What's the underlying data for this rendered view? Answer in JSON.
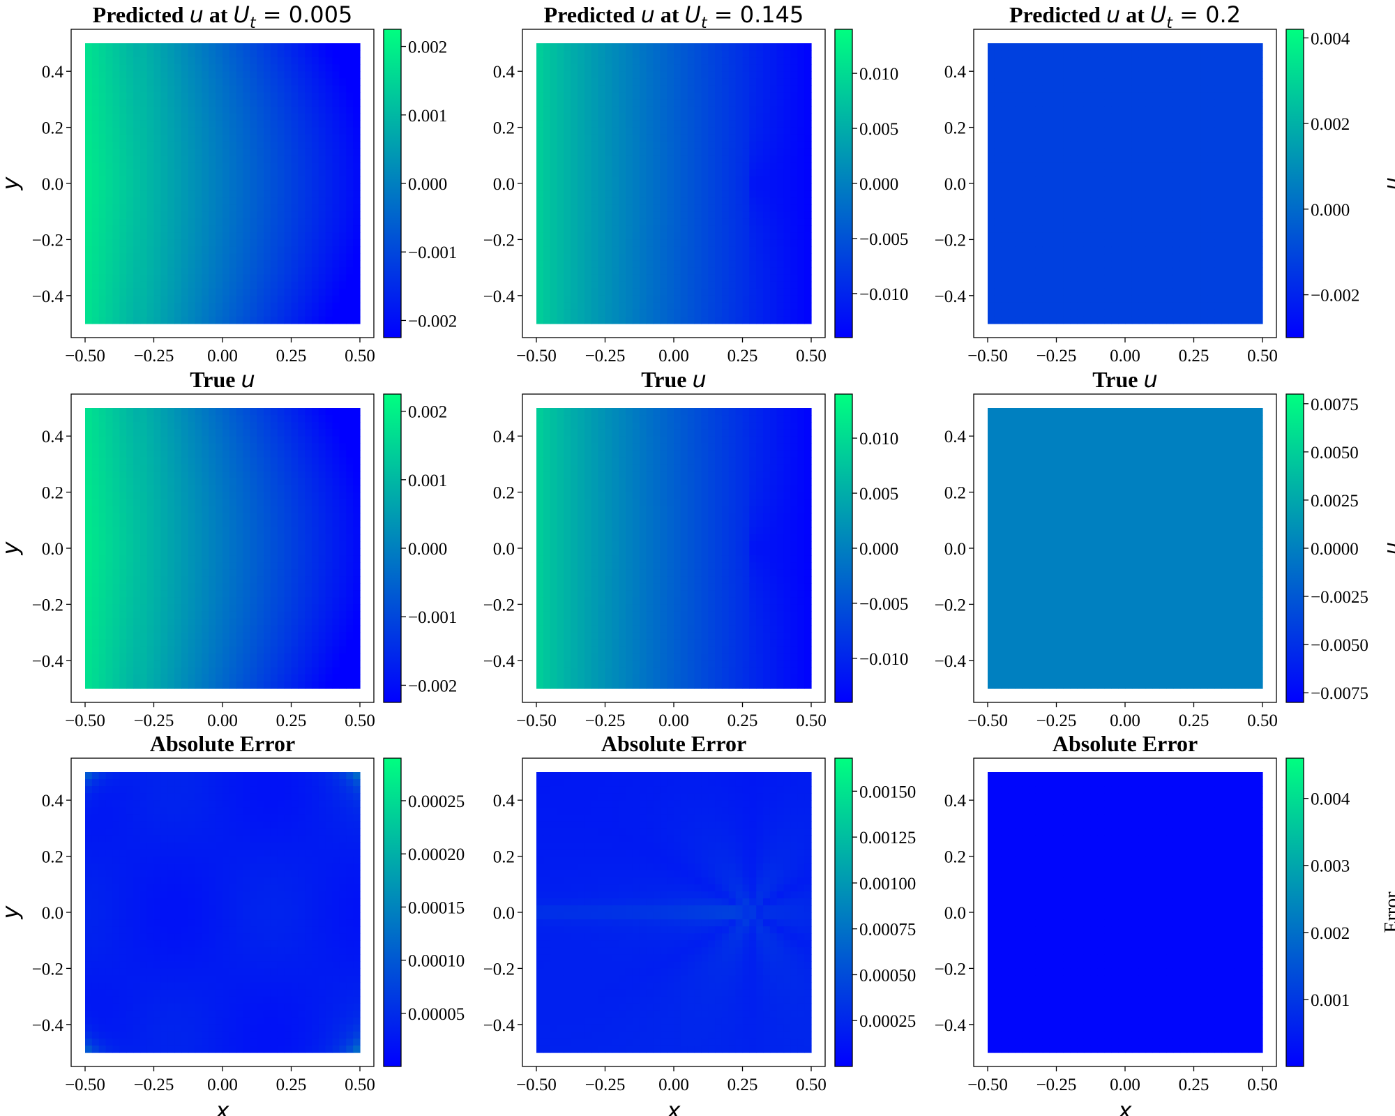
{
  "colors": {
    "low": "#0000ff",
    "high": "#00ff80"
  },
  "chart_data": [
    {
      "type": "heatmap",
      "row": 0,
      "col": 0,
      "title_parts": [
        "Predicted ",
        "u",
        " at ",
        "U",
        "t",
        " = 0.005"
      ],
      "xlim": [
        -0.5,
        0.5
      ],
      "ylim": [
        -0.5,
        0.5
      ],
      "xticks": [
        "−0.50",
        "−0.25",
        "0.00",
        "0.25",
        "0.50"
      ],
      "yticks": [
        "−0.4",
        "−0.2",
        "0.0",
        "0.2",
        "0.4"
      ],
      "ylabel": "y",
      "xlabel": "",
      "colorbar": {
        "range": [
          -0.00225,
          0.00225
        ],
        "ticks": [
          -0.002,
          -0.001,
          0.0,
          0.001,
          0.002
        ],
        "tick_labels": [
          "−0.002",
          "−0.001",
          "0.000",
          "0.001",
          "0.002"
        ],
        "label": ""
      },
      "pattern": "left-high",
      "field_approx": {
        "left_edge": 0.0019,
        "right_edge": -0.0021
      }
    },
    {
      "type": "heatmap",
      "row": 0,
      "col": 1,
      "title_parts": [
        "Predicted ",
        "u",
        " at ",
        "U",
        "t",
        " = 0.145"
      ],
      "xlim": [
        -0.5,
        0.5
      ],
      "ylim": [
        -0.5,
        0.5
      ],
      "xticks": [
        "−0.50",
        "−0.25",
        "0.00",
        "0.25",
        "0.50"
      ],
      "yticks": [
        "−0.4",
        "−0.2",
        "0.0",
        "0.2",
        "0.4"
      ],
      "ylabel": "",
      "xlabel": "",
      "colorbar": {
        "range": [
          -0.014,
          0.014
        ],
        "ticks": [
          -0.01,
          -0.005,
          0.0,
          0.005,
          0.01
        ],
        "tick_labels": [
          "−0.010",
          "−0.005",
          "0.000",
          "0.005",
          "0.010"
        ],
        "label": ""
      },
      "pattern": "left-high-crack",
      "field_approx": {
        "left_edge": 0.009,
        "right_edge": -0.013
      }
    },
    {
      "type": "heatmap",
      "row": 0,
      "col": 2,
      "title_parts": [
        "Predicted ",
        "u",
        " at ",
        "U",
        "t",
        " = 0.2"
      ],
      "xlim": [
        -0.5,
        0.5
      ],
      "ylim": [
        -0.5,
        0.5
      ],
      "xticks": [
        "−0.50",
        "−0.25",
        "0.00",
        "0.25",
        "0.50"
      ],
      "yticks": [
        "−0.4",
        "−0.2",
        "0.0",
        "0.2",
        "0.4"
      ],
      "ylabel": "",
      "xlabel": "",
      "colorbar": {
        "range": [
          -0.003,
          0.0042
        ],
        "ticks": [
          -0.002,
          0.0,
          0.002,
          0.004
        ],
        "tick_labels": [
          "−0.002",
          "0.000",
          "0.002",
          "0.004"
        ],
        "label": "u"
      },
      "pattern": "uniform",
      "field_approx": {
        "uniform": -0.0012
      }
    },
    {
      "type": "heatmap",
      "row": 1,
      "col": 0,
      "title_parts": [
        "True ",
        "u"
      ],
      "xlim": [
        -0.5,
        0.5
      ],
      "ylim": [
        -0.5,
        0.5
      ],
      "xticks": [
        "−0.50",
        "−0.25",
        "0.00",
        "0.25",
        "0.50"
      ],
      "yticks": [
        "−0.4",
        "−0.2",
        "0.0",
        "0.2",
        "0.4"
      ],
      "ylabel": "y",
      "xlabel": "",
      "colorbar": {
        "range": [
          -0.00225,
          0.00225
        ],
        "ticks": [
          -0.002,
          -0.001,
          0.0,
          0.001,
          0.002
        ],
        "tick_labels": [
          "−0.002",
          "−0.001",
          "0.000",
          "0.001",
          "0.002"
        ],
        "label": ""
      },
      "pattern": "left-high",
      "field_approx": {
        "left_edge": 0.0019,
        "right_edge": -0.0021
      }
    },
    {
      "type": "heatmap",
      "row": 1,
      "col": 1,
      "title_parts": [
        "True ",
        "u"
      ],
      "xlim": [
        -0.5,
        0.5
      ],
      "ylim": [
        -0.5,
        0.5
      ],
      "xticks": [
        "−0.50",
        "−0.25",
        "0.00",
        "0.25",
        "0.50"
      ],
      "yticks": [
        "−0.4",
        "−0.2",
        "0.0",
        "0.2",
        "0.4"
      ],
      "ylabel": "",
      "xlabel": "",
      "colorbar": {
        "range": [
          -0.014,
          0.014
        ],
        "ticks": [
          -0.01,
          -0.005,
          0.0,
          0.005,
          0.01
        ],
        "tick_labels": [
          "−0.010",
          "−0.005",
          "0.000",
          "0.005",
          "0.010"
        ],
        "label": ""
      },
      "pattern": "left-high-crack",
      "field_approx": {
        "left_edge": 0.009,
        "right_edge": -0.013
      }
    },
    {
      "type": "heatmap",
      "row": 1,
      "col": 2,
      "title_parts": [
        "True ",
        "u"
      ],
      "xlim": [
        -0.5,
        0.5
      ],
      "ylim": [
        -0.5,
        0.5
      ],
      "xticks": [
        "−0.50",
        "−0.25",
        "0.00",
        "0.25",
        "0.50"
      ],
      "yticks": [
        "−0.4",
        "−0.2",
        "0.0",
        "0.2",
        "0.4"
      ],
      "ylabel": "",
      "xlabel": "",
      "colorbar": {
        "range": [
          -0.008,
          0.008
        ],
        "ticks": [
          -0.0075,
          -0.005,
          -0.0025,
          0.0,
          0.0025,
          0.005,
          0.0075
        ],
        "tick_labels": [
          "−0.0075",
          "−0.0050",
          "−0.0025",
          "0.0000",
          "0.0025",
          "0.0050",
          "0.0075"
        ],
        "label": "u"
      },
      "pattern": "uniform",
      "field_approx": {
        "uniform": 0.0
      }
    },
    {
      "type": "heatmap",
      "row": 2,
      "col": 0,
      "title_parts": [
        "Absolute Error"
      ],
      "xlim": [
        -0.5,
        0.5
      ],
      "ylim": [
        -0.5,
        0.5
      ],
      "xticks": [
        "−0.50",
        "−0.25",
        "0.00",
        "0.25",
        "0.50"
      ],
      "yticks": [
        "−0.4",
        "−0.2",
        "0.0",
        "0.2",
        "0.4"
      ],
      "ylabel": "y",
      "xlabel": "x",
      "colorbar": {
        "range": [
          0.0,
          0.00029
        ],
        "ticks": [
          5e-05,
          0.0001,
          0.00015,
          0.0002,
          0.00025
        ],
        "tick_labels": [
          "0.00005",
          "0.00010",
          "0.00015",
          "0.00020",
          "0.00025"
        ],
        "label": ""
      },
      "pattern": "error-low",
      "field_approx": {
        "typical": 3e-05,
        "corner_max": 0.00027
      }
    },
    {
      "type": "heatmap",
      "row": 2,
      "col": 1,
      "title_parts": [
        "Absolute Error"
      ],
      "xlim": [
        -0.5,
        0.5
      ],
      "ylim": [
        -0.5,
        0.5
      ],
      "xticks": [
        "−0.50",
        "−0.25",
        "0.00",
        "0.25",
        "0.50"
      ],
      "yticks": [
        "−0.4",
        "−0.2",
        "0.0",
        "0.2",
        "0.4"
      ],
      "ylabel": "",
      "xlabel": "x",
      "colorbar": {
        "range": [
          0.0,
          0.00168
        ],
        "ticks": [
          0.00025,
          0.0005,
          0.00075,
          0.001,
          0.00125,
          0.0015
        ],
        "tick_labels": [
          "0.00025",
          "0.00050",
          "0.00075",
          "0.00100",
          "0.00125",
          "0.00150"
        ],
        "label": ""
      },
      "pattern": "error-crack",
      "field_approx": {
        "typical": 0.00015,
        "crack_tip": [
          0.28,
          0.0
        ]
      }
    },
    {
      "type": "heatmap",
      "row": 2,
      "col": 2,
      "title_parts": [
        "Absolute Error"
      ],
      "xlim": [
        -0.5,
        0.5
      ],
      "ylim": [
        -0.5,
        0.5
      ],
      "xticks": [
        "−0.50",
        "−0.25",
        "0.00",
        "0.25",
        "0.50"
      ],
      "yticks": [
        "−0.4",
        "−0.2",
        "0.0",
        "0.2",
        "0.4"
      ],
      "ylabel": "",
      "xlabel": "x",
      "colorbar": {
        "range": [
          0.0,
          0.0046
        ],
        "ticks": [
          0.001,
          0.002,
          0.003,
          0.004
        ],
        "tick_labels": [
          "0.001",
          "0.002",
          "0.003",
          "0.004"
        ],
        "label": "Error"
      },
      "pattern": "uniform-low",
      "field_approx": {
        "uniform": 0.0001
      }
    }
  ]
}
